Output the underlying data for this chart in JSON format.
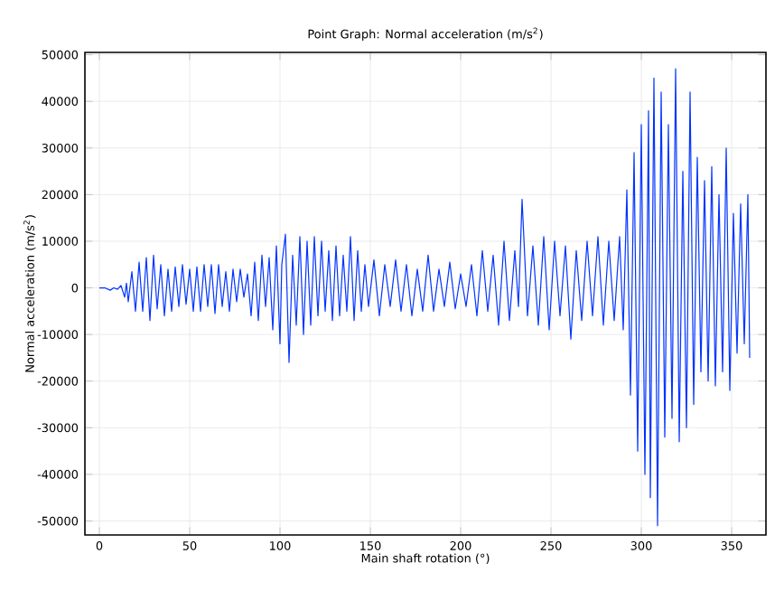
{
  "chart_data": {
    "type": "line",
    "title": "Point Graph: Normal acceleration (m/s$^{2}$)",
    "xlabel": "Main shaft rotation (°)",
    "ylabel": "Normal acceleration (m/s$^{2}$)",
    "xlim": [
      -8,
      369
    ],
    "ylim": [
      -53000,
      50500
    ],
    "xticks": [
      0,
      50,
      100,
      150,
      200,
      250,
      300,
      350
    ],
    "yticks": [
      -50000,
      -40000,
      -30000,
      -20000,
      -10000,
      0,
      10000,
      20000,
      30000,
      40000,
      50000
    ],
    "grid": true,
    "marker": "none",
    "line_style": "solid",
    "series": [
      {
        "color": "#0033ff",
        "x": [
          0,
          3,
          6,
          8,
          10,
          12,
          14,
          15,
          16,
          18,
          20,
          22,
          24,
          26,
          28,
          30,
          32,
          34,
          36,
          38,
          40,
          42,
          44,
          46,
          48,
          50,
          52,
          54,
          56,
          58,
          60,
          62,
          64,
          66,
          68,
          70,
          72,
          74,
          76,
          78,
          80,
          82,
          84,
          86,
          88,
          90,
          92,
          94,
          96,
          98,
          100,
          101,
          103,
          105,
          107,
          109,
          111,
          113,
          115,
          117,
          119,
          121,
          123,
          125,
          127,
          129,
          131,
          133,
          135,
          137,
          139,
          141,
          143,
          145,
          147,
          149,
          152,
          155,
          158,
          161,
          164,
          167,
          170,
          173,
          176,
          179,
          182,
          185,
          188,
          191,
          194,
          197,
          200,
          203,
          206,
          209,
          212,
          215,
          218,
          221,
          224,
          227,
          230,
          232,
          234,
          237,
          240,
          243,
          246,
          249,
          252,
          255,
          258,
          261,
          264,
          267,
          270,
          273,
          276,
          279,
          282,
          285,
          288,
          290,
          292,
          294,
          296,
          298,
          300,
          302,
          304,
          305,
          307,
          309,
          311,
          313,
          315,
          317,
          319,
          321,
          323,
          325,
          327,
          329,
          331,
          333,
          335,
          337,
          339,
          341,
          343,
          345,
          347,
          349,
          351,
          353,
          355,
          357,
          359,
          360
        ],
        "values": [
          0,
          0,
          -500,
          0,
          -300,
          500,
          -2000,
          1000,
          -3000,
          3500,
          -5000,
          5500,
          -5000,
          6500,
          -7000,
          7000,
          -4500,
          5000,
          -6000,
          4000,
          -5000,
          4500,
          -4000,
          5000,
          -3500,
          4000,
          -5000,
          4500,
          -5000,
          5000,
          -4000,
          5000,
          -5500,
          5000,
          -4000,
          3500,
          -5000,
          4000,
          -3000,
          4000,
          -2000,
          3000,
          -6000,
          5500,
          -7000,
          7000,
          -4000,
          6500,
          -9000,
          9000,
          -12000,
          5000,
          11500,
          -16000,
          7000,
          -8000,
          11000,
          -10000,
          10000,
          -8000,
          11000,
          -6000,
          10000,
          -5000,
          8000,
          -7000,
          9000,
          -6000,
          7000,
          -5000,
          11000,
          -7000,
          8000,
          -5000,
          5000,
          -4000,
          6000,
          -6000,
          5000,
          -4000,
          6000,
          -5000,
          5000,
          -6000,
          4000,
          -5000,
          7000,
          -5000,
          4000,
          -4000,
          5500,
          -4500,
          3000,
          -4000,
          5000,
          -6000,
          8000,
          -5000,
          7000,
          -8000,
          10000,
          -7000,
          8000,
          -4000,
          19000,
          -6000,
          9000,
          -8000,
          11000,
          -9000,
          10000,
          -6000,
          9000,
          -11000,
          8000,
          -7000,
          10000,
          -6000,
          11000,
          -8000,
          10000,
          -7000,
          11000,
          -9000,
          21000,
          -23000,
          29000,
          -35000,
          35000,
          -40000,
          38000,
          -45000,
          45000,
          -51000,
          42000,
          -32000,
          35000,
          -28000,
          47000,
          -33000,
          25000,
          -30000,
          42000,
          -25000,
          28000,
          -18000,
          23000,
          -20000,
          26000,
          -21000,
          20000,
          -18000,
          30000,
          -22000,
          16000,
          -14000,
          18000,
          -12000,
          20000,
          -15000
        ]
      }
    ]
  }
}
